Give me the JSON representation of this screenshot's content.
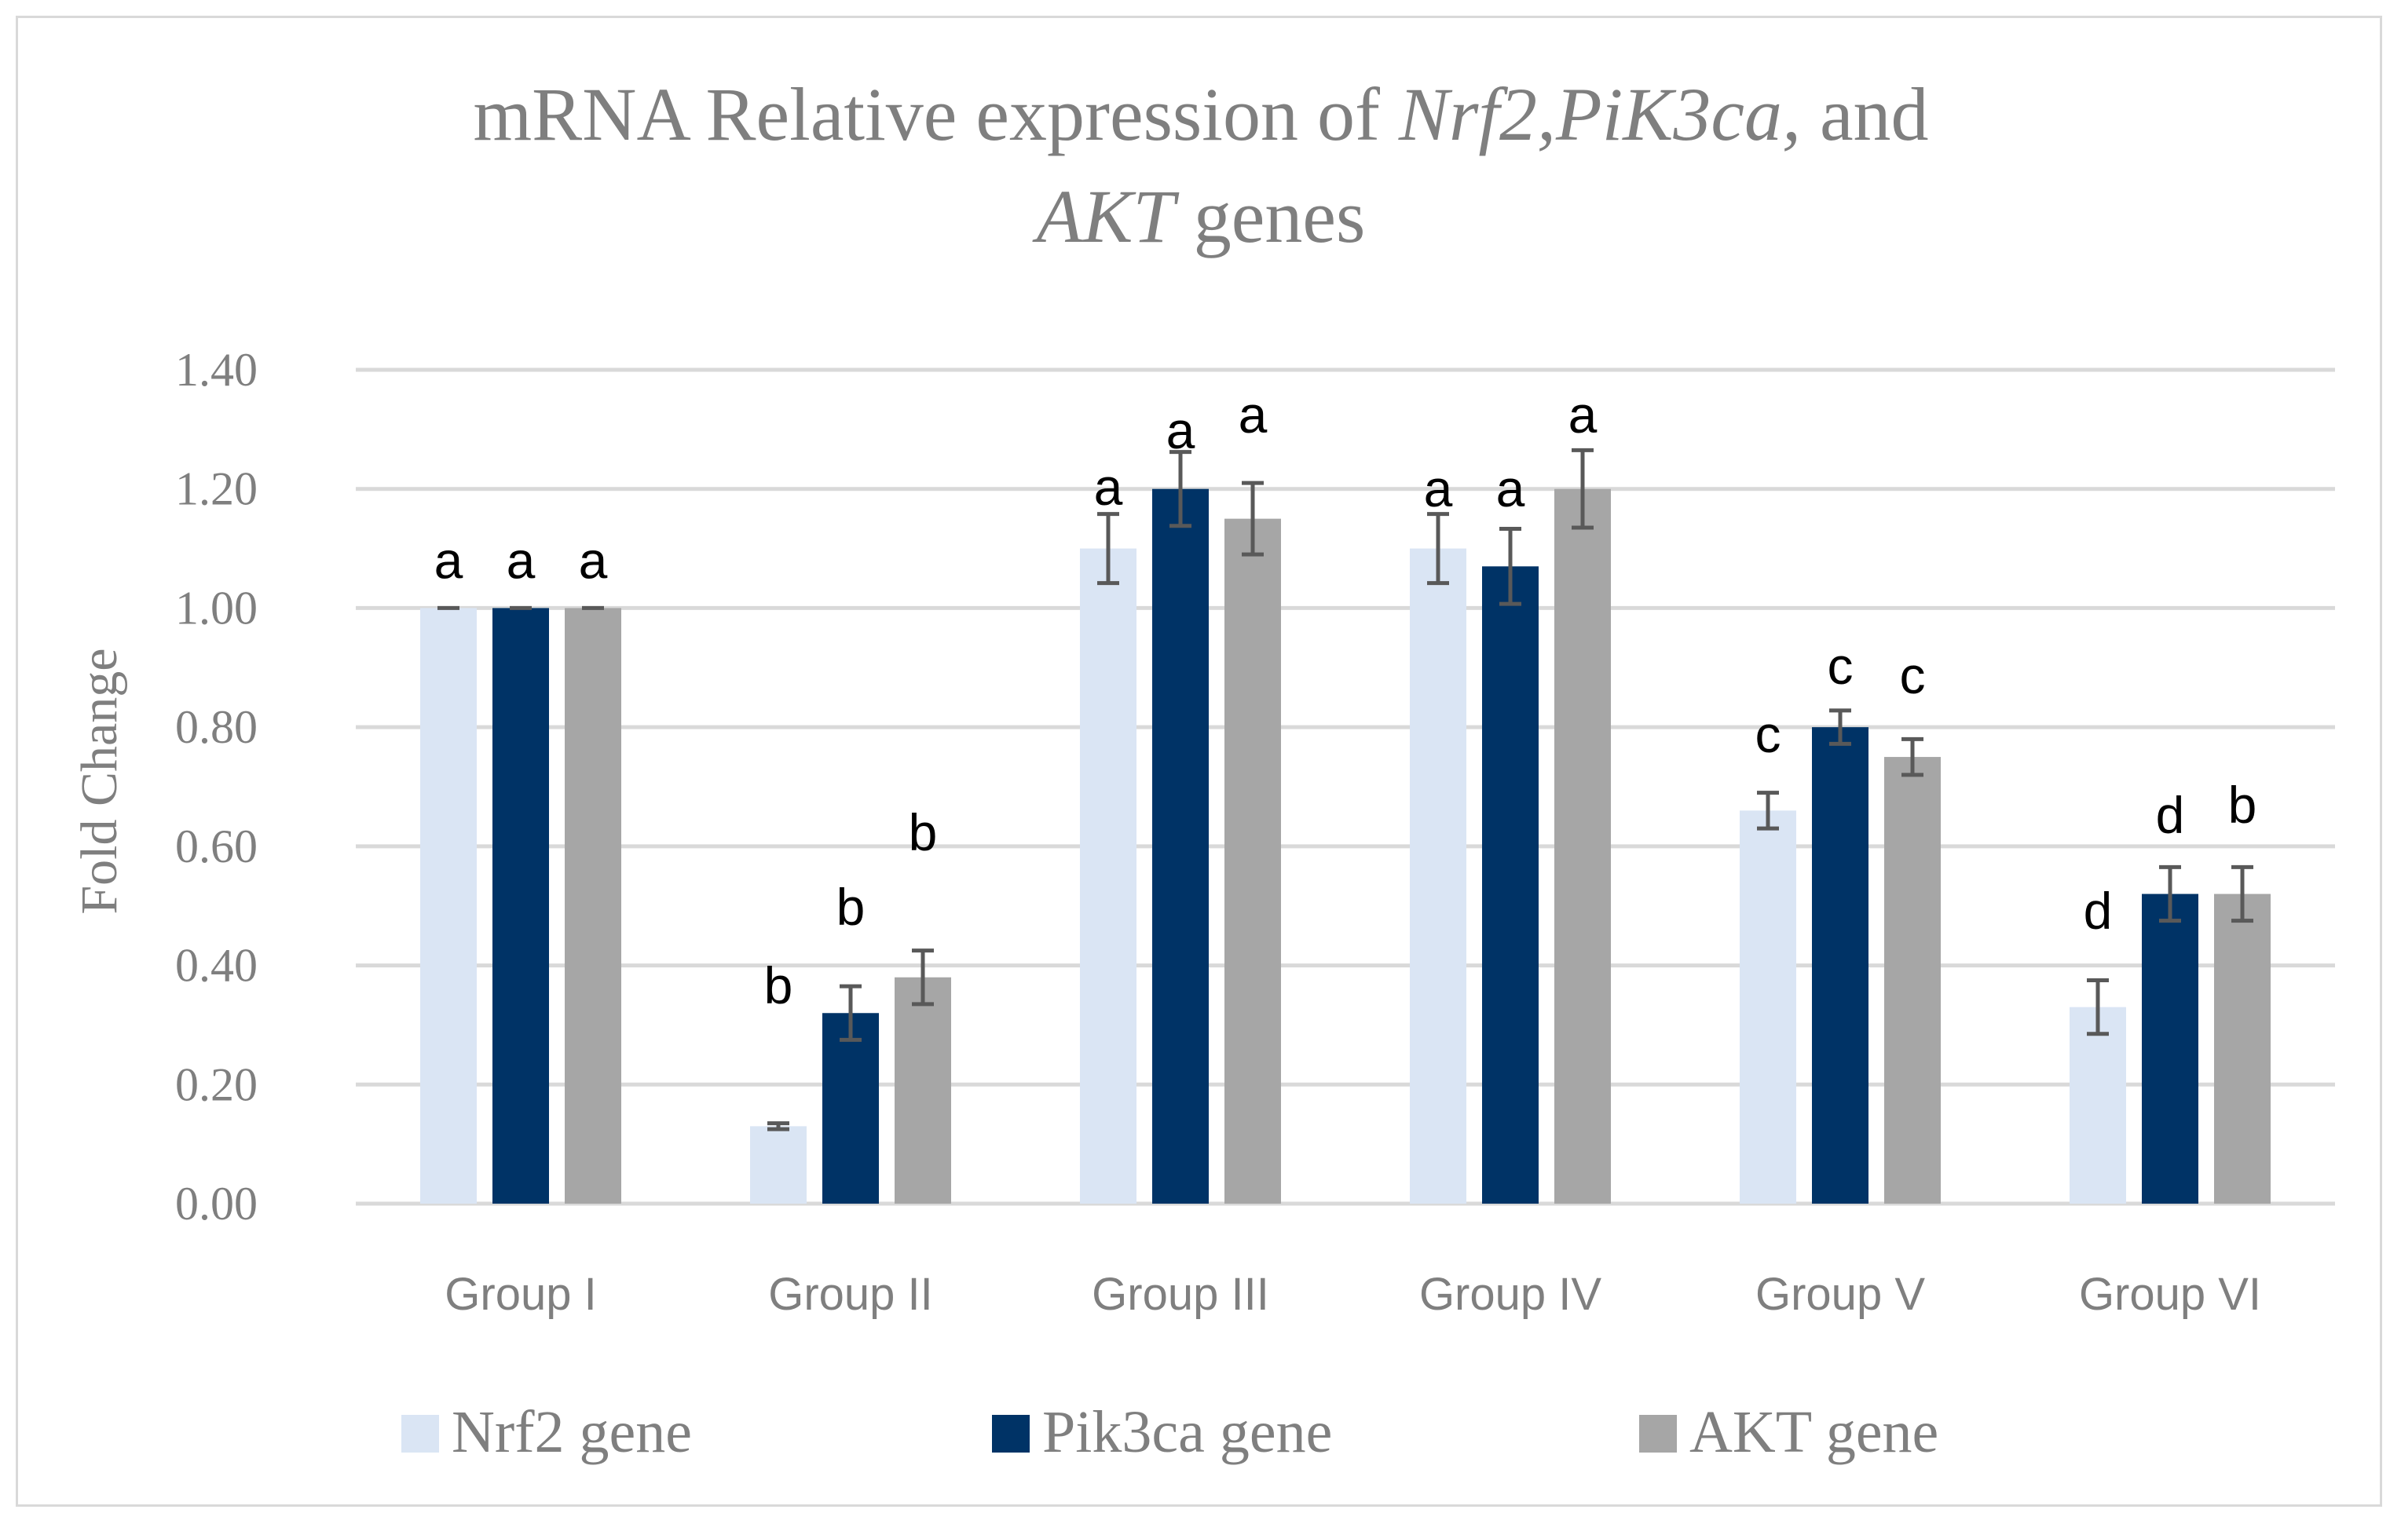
{
  "chart_data": {
    "type": "bar",
    "title": {
      "line1": [
        {
          "text": "mRNA Relative expression of ",
          "italic": false
        },
        {
          "text": "Nrf2,PiK3ca,",
          "italic": true
        },
        {
          "text": " and",
          "italic": false
        }
      ],
      "line2": [
        {
          "text": "AKT",
          "italic": true
        },
        {
          "text": " genes",
          "italic": false
        }
      ]
    },
    "ylabel": "Fold Change",
    "xlabel": "",
    "ylim": [
      0,
      1.4
    ],
    "yticks": [
      "0.00",
      "0.20",
      "0.40",
      "0.60",
      "0.80",
      "1.00",
      "1.20",
      "1.40"
    ],
    "grid": true,
    "legend_position": "bottom",
    "categories": [
      "Group I",
      "Group II",
      "Group III",
      "Group IV",
      "Group V",
      "Group VI"
    ],
    "series": [
      {
        "name": "Nrf2 gene",
        "color": "#dae5f4",
        "values": [
          1.0,
          0.13,
          1.1,
          1.1,
          0.66,
          0.33
        ],
        "errors": [
          0.0,
          0.005,
          0.058,
          0.058,
          0.03,
          0.045
        ],
        "labels": [
          "a",
          "b",
          "a",
          "a",
          "c",
          "d"
        ]
      },
      {
        "name": "Pik3ca gene",
        "color": "#003366",
        "values": [
          1.0,
          0.32,
          1.2,
          1.07,
          0.8,
          0.52
        ],
        "errors": [
          0.0,
          0.045,
          0.062,
          0.063,
          0.028,
          0.045
        ],
        "labels": [
          "a",
          "b",
          "a",
          "a",
          "c",
          "d"
        ]
      },
      {
        "name": "AKT gene",
        "color": "#a6a6a6",
        "values": [
          1.0,
          0.38,
          1.15,
          1.2,
          0.75,
          0.52
        ],
        "errors": [
          0.0,
          0.045,
          0.06,
          0.065,
          0.03,
          0.045
        ],
        "labels": [
          "a",
          "b",
          "a",
          "a",
          "c",
          "b"
        ]
      }
    ]
  }
}
